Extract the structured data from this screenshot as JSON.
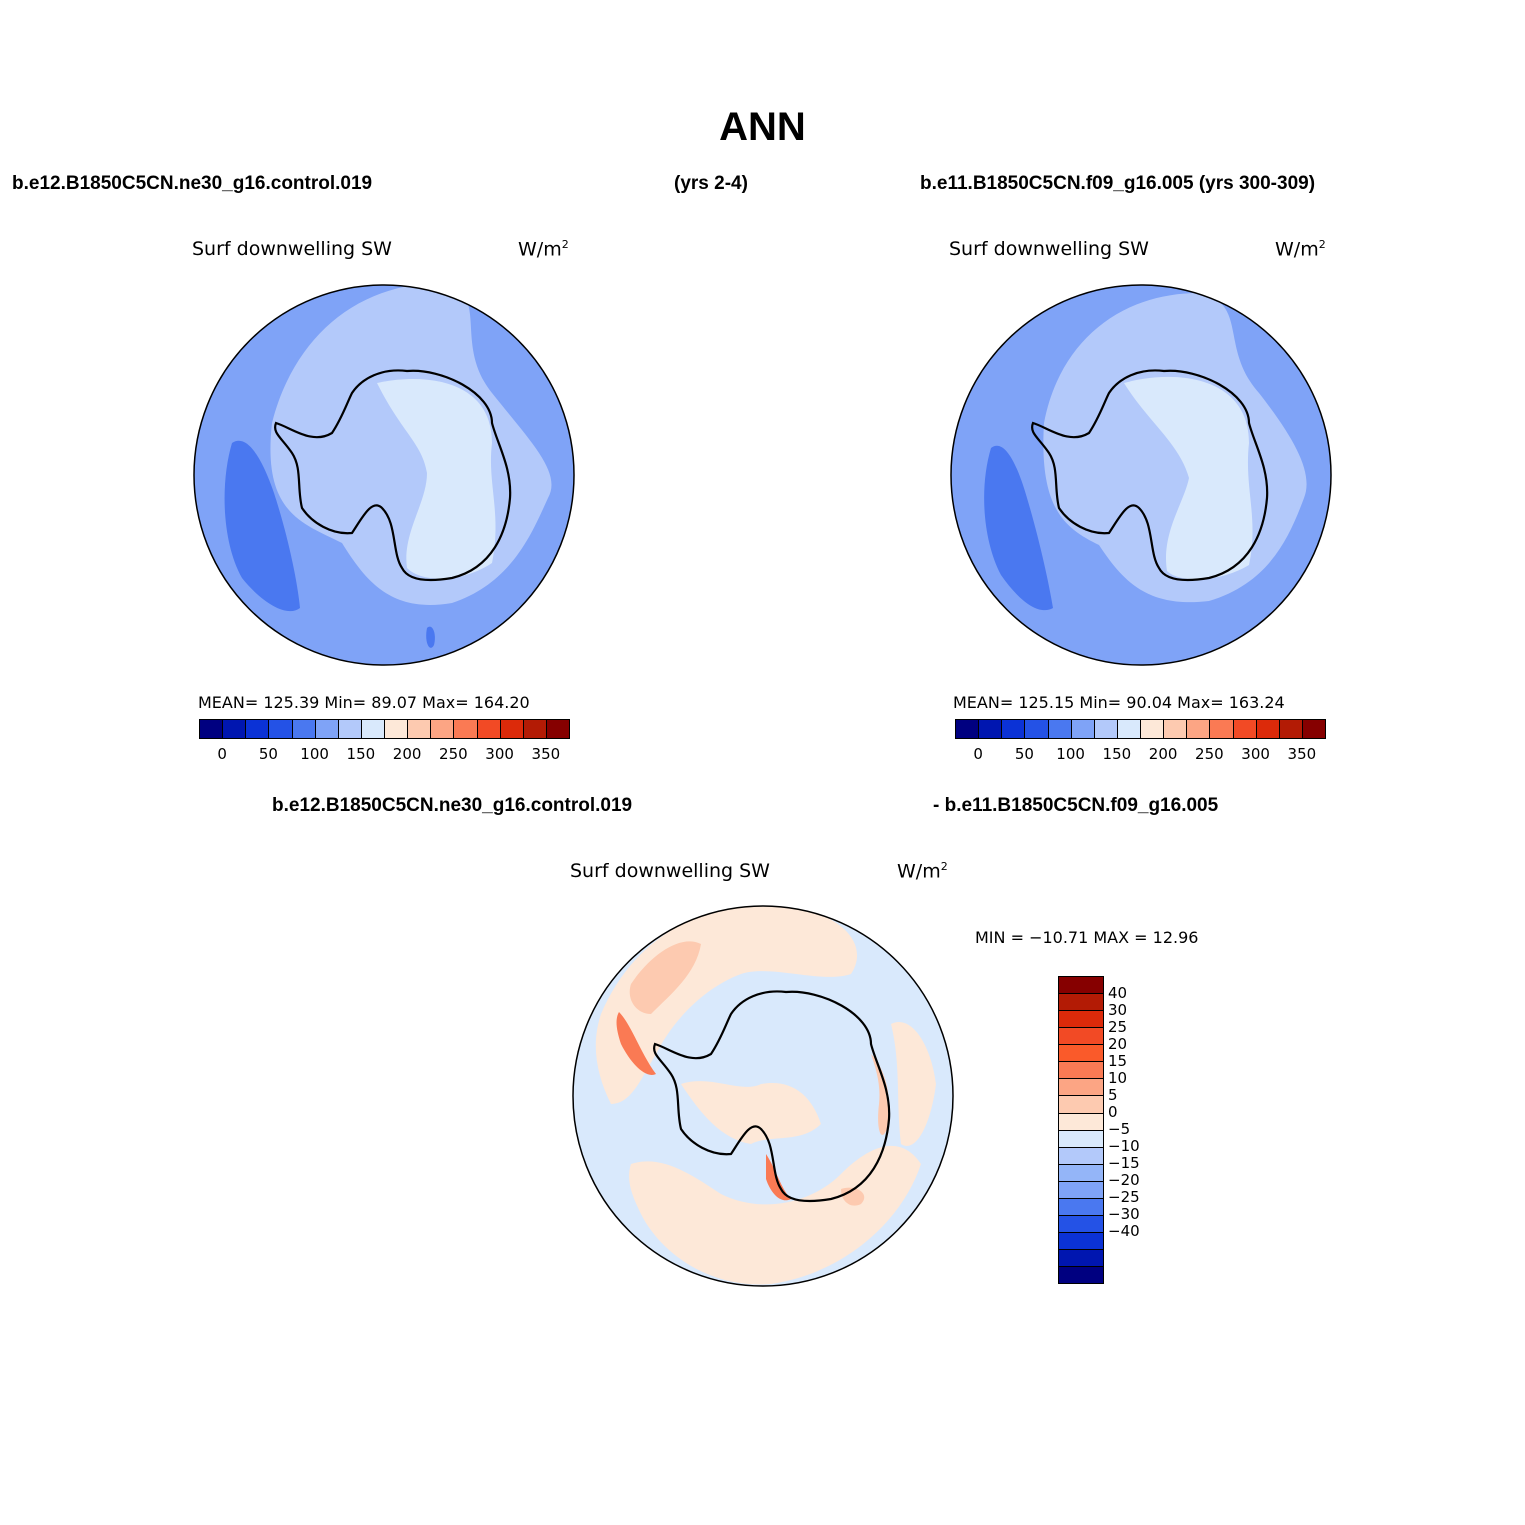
{
  "title": "ANN",
  "top_left": {
    "case": "b.e12.B1850C5CN.ne30_g16.control.019",
    "years": "(yrs 2-4)"
  },
  "top_right": {
    "case_years": "b.e11.B1850C5CN.f09_g16.005 (yrs 300-309)"
  },
  "diff_header": {
    "left": "b.e12.B1850C5CN.ne30_g16.control.019",
    "right": "- b.e11.B1850C5CN.f09_g16.005"
  },
  "panels": [
    {
      "variable": "Surf downwelling SW",
      "units": "W/m",
      "units_sup": "2",
      "stats": "MEAN= 125.39   Min=   89.07   Max= 164.20"
    },
    {
      "variable": "Surf downwelling SW",
      "units": "W/m",
      "units_sup": "2",
      "stats": "MEAN= 125.15   Min=   90.04   Max= 163.24"
    },
    {
      "variable": "Surf downwelling SW",
      "units": "W/m",
      "units_sup": "2",
      "stats": "MIN = −10.71 MAX =   12.96"
    }
  ],
  "colorbar_abs": {
    "colors": [
      "#000080",
      "#0016b0",
      "#0b32d6",
      "#2452e6",
      "#4a78f0",
      "#7fa3f7",
      "#b3c9fa",
      "#d9e9fc",
      "#fde8d8",
      "#fdcab0",
      "#fca584",
      "#fa7a54",
      "#f24a25",
      "#dc2a0a",
      "#b31b05",
      "#860000"
    ],
    "labels": [
      "0",
      "50",
      "100",
      "150",
      "200",
      "250",
      "300",
      "350"
    ]
  },
  "colorbar_diff": {
    "colors": [
      "#860000",
      "#b31b05",
      "#dc2a0a",
      "#f24a25",
      "#fa5a2a",
      "#fa7a54",
      "#fca584",
      "#fdcab0",
      "#fde8d8",
      "#d9e9fc",
      "#b3c9fa",
      "#94b5f8",
      "#7fa3f7",
      "#4a78f0",
      "#2452e6",
      "#0b32d6",
      "#0016b0",
      "#000080"
    ],
    "labels": [
      "40",
      "30",
      "25",
      "20",
      "15",
      "10",
      "5",
      "0",
      "−5",
      "−10",
      "−15",
      "−20",
      "−25",
      "−30",
      "−40"
    ]
  },
  "field_colors": {
    "abs_outer": "#7fa3f7",
    "abs_dark": "#4a78f0",
    "abs_mid": "#b3c9fa",
    "abs_light": "#d9e9fc",
    "diff_blue": "#d9e9fc",
    "diff_orange": "#fde8d8",
    "diff_orange2": "#fdcab0",
    "diff_red": "#fa7a54"
  }
}
